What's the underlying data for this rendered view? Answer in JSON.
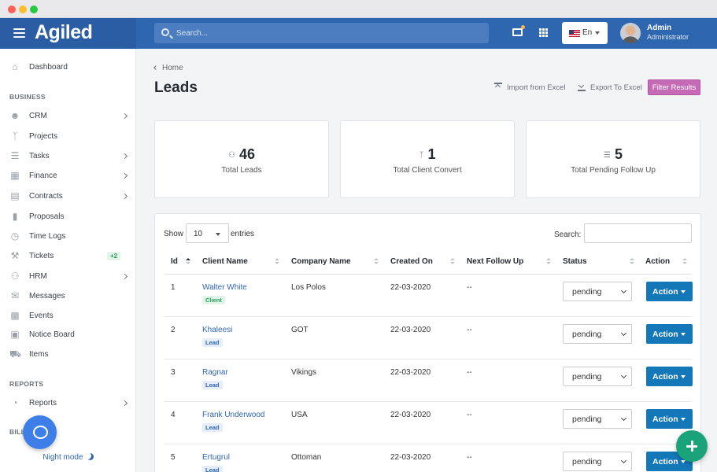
{
  "app": {
    "brand": "Agiled",
    "search_placeholder": "Search...",
    "language": "En",
    "user_name": "Admin",
    "user_role": "Administrator"
  },
  "colors": {
    "topbar": "#2f66b0",
    "filter_button": "#c56ab5",
    "action_button": "#1377b8",
    "fab": "#1aa37a"
  },
  "sidebar": {
    "dashboard": "Dashboard",
    "section_business": "BUSINESS",
    "items": [
      {
        "label": "CRM",
        "icon": "user-icon"
      },
      {
        "label": "Projects",
        "icon": "project-icon"
      },
      {
        "label": "Tasks",
        "icon": "list-icon"
      },
      {
        "label": "Finance",
        "icon": "finance-icon"
      },
      {
        "label": "Contracts",
        "icon": "contract-icon"
      },
      {
        "label": "Proposals",
        "icon": "proposal-icon"
      },
      {
        "label": "Time Logs",
        "icon": "clock-icon"
      },
      {
        "label": "Tickets",
        "icon": "wrench-icon",
        "badge": "+2"
      },
      {
        "label": "HRM",
        "icon": "team-icon"
      },
      {
        "label": "Messages",
        "icon": "chat-icon"
      },
      {
        "label": "Events",
        "icon": "calendar-icon"
      },
      {
        "label": "Notice Board",
        "icon": "notice-icon"
      },
      {
        "label": "Items",
        "icon": "cart-icon"
      }
    ],
    "section_reports": "REPORTS",
    "reports": "Reports",
    "section_billing": "BILL",
    "night_mode": "Night mode"
  },
  "page": {
    "breadcrumb": "Home",
    "title": "Leads",
    "import_label": "Import from Excel",
    "export_label": "Export To Excel",
    "filter_label": "Filter Results"
  },
  "stats": [
    {
      "value": "46",
      "label": "Total Leads"
    },
    {
      "value": "1",
      "label": "Total Client Convert"
    },
    {
      "value": "5",
      "label": "Total Pending Follow Up"
    }
  ],
  "table": {
    "show_label": "Show",
    "entries_value": "10",
    "entries_label": "entries",
    "search_label": "Search:",
    "columns": [
      "Id",
      "Client Name",
      "Company Name",
      "Created On",
      "Next Follow Up",
      "Status",
      "Action"
    ],
    "rows": [
      {
        "id": "1",
        "client": "Walter White",
        "tag": "Client",
        "company": "Los Polos",
        "created": "22-03-2020",
        "follow_up": "--",
        "status": "pending",
        "action": "Action"
      },
      {
        "id": "2",
        "client": "Khaleesi",
        "tag": "Lead",
        "company": "GOT",
        "created": "22-03-2020",
        "follow_up": "--",
        "status": "pending",
        "action": "Action"
      },
      {
        "id": "3",
        "client": "Ragnar",
        "tag": "Lead",
        "company": "Vikings",
        "created": "22-03-2020",
        "follow_up": "--",
        "status": "pending",
        "action": "Action"
      },
      {
        "id": "4",
        "client": "Frank Underwood",
        "tag": "Lead",
        "company": "USA",
        "created": "22-03-2020",
        "follow_up": "--",
        "status": "pending",
        "action": "Action"
      },
      {
        "id": "5",
        "client": "Ertugrul",
        "tag": "Lead",
        "company": "Ottoman",
        "created": "22-03-2020",
        "follow_up": "--",
        "status": "pending",
        "action": "Action"
      }
    ]
  }
}
